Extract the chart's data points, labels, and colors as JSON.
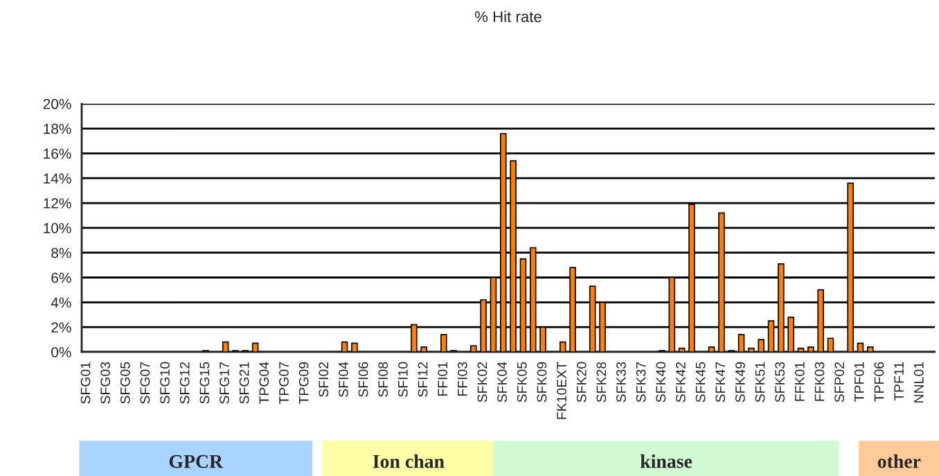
{
  "chart_data": {
    "type": "bar",
    "title": "% Hit rate",
    "categories": [
      "SFG01",
      null,
      "SFG03",
      null,
      "SFG05",
      null,
      "SFG07",
      null,
      "SFG10",
      null,
      "SFG12",
      null,
      "SFG15",
      null,
      "SFG17",
      null,
      "SFG21",
      null,
      "TPG04",
      null,
      "TPG07",
      null,
      "TPG09",
      null,
      "SFI02",
      null,
      "SFI04",
      null,
      "SFI06",
      null,
      "SFI08",
      null,
      "SFI10",
      null,
      "SFI12",
      null,
      "FFI01",
      null,
      "FFI03",
      null,
      "SFK02",
      null,
      "SFK04",
      null,
      "SFK05",
      null,
      "SFK09",
      null,
      "FK10EXT",
      null,
      "SFK20",
      null,
      "SFK28",
      null,
      "SFK33",
      null,
      "SFK37",
      null,
      "SFK40",
      null,
      "SFK42",
      null,
      "SFK45",
      null,
      "SFK47",
      null,
      "SFK49",
      null,
      "SFK51",
      null,
      "SFK53",
      null,
      "FFK01",
      null,
      "FFK03",
      null,
      "SFP02",
      null,
      "TPF01",
      null,
      "TPF06",
      null,
      "TPF11",
      null,
      "NNL01",
      null
    ],
    "values": [
      0,
      0,
      0,
      0,
      0,
      0,
      0,
      0,
      0,
      0,
      0,
      0,
      0.1,
      0,
      0.8,
      0.1,
      0.1,
      0.7,
      0,
      0,
      0,
      0,
      0,
      0,
      0,
      0,
      0.8,
      0.7,
      0,
      0,
      0,
      0,
      0,
      2.2,
      0.4,
      0,
      1.4,
      0.1,
      0,
      0.5,
      4.2,
      6.0,
      17.6,
      15.4,
      7.5,
      8.4,
      2.0,
      0,
      0.8,
      6.8,
      0,
      5.3,
      4.0,
      0,
      0,
      0,
      0,
      0,
      0.1,
      6.0,
      0.3,
      11.9,
      0,
      0.4,
      11.2,
      0.1,
      1.4,
      0.3,
      1.0,
      2.5,
      7.1,
      2.8,
      0.3,
      0.4,
      5.0,
      1.1,
      0,
      13.6,
      0.7,
      0.4,
      0,
      0,
      0,
      0,
      0,
      0
    ],
    "color": "#ff8000",
    "ylim": [
      0,
      20
    ],
    "yticks": [
      {
        "value": 0,
        "label": "0%"
      },
      {
        "value": 2,
        "label": "2%"
      },
      {
        "value": 4,
        "label": "4%"
      },
      {
        "value": 6,
        "label": "6%"
      },
      {
        "value": 8,
        "label": "8%"
      },
      {
        "value": 10,
        "label": "10%"
      },
      {
        "value": 12,
        "label": "12%"
      },
      {
        "value": 14,
        "label": "14%"
      },
      {
        "value": 16,
        "label": "16%"
      },
      {
        "value": 18,
        "label": "18%"
      },
      {
        "value": 20,
        "label": "20%"
      }
    ],
    "grid": "y",
    "annotations": [
      "GPCR",
      "Ion chan",
      "kinase",
      "other"
    ]
  }
}
